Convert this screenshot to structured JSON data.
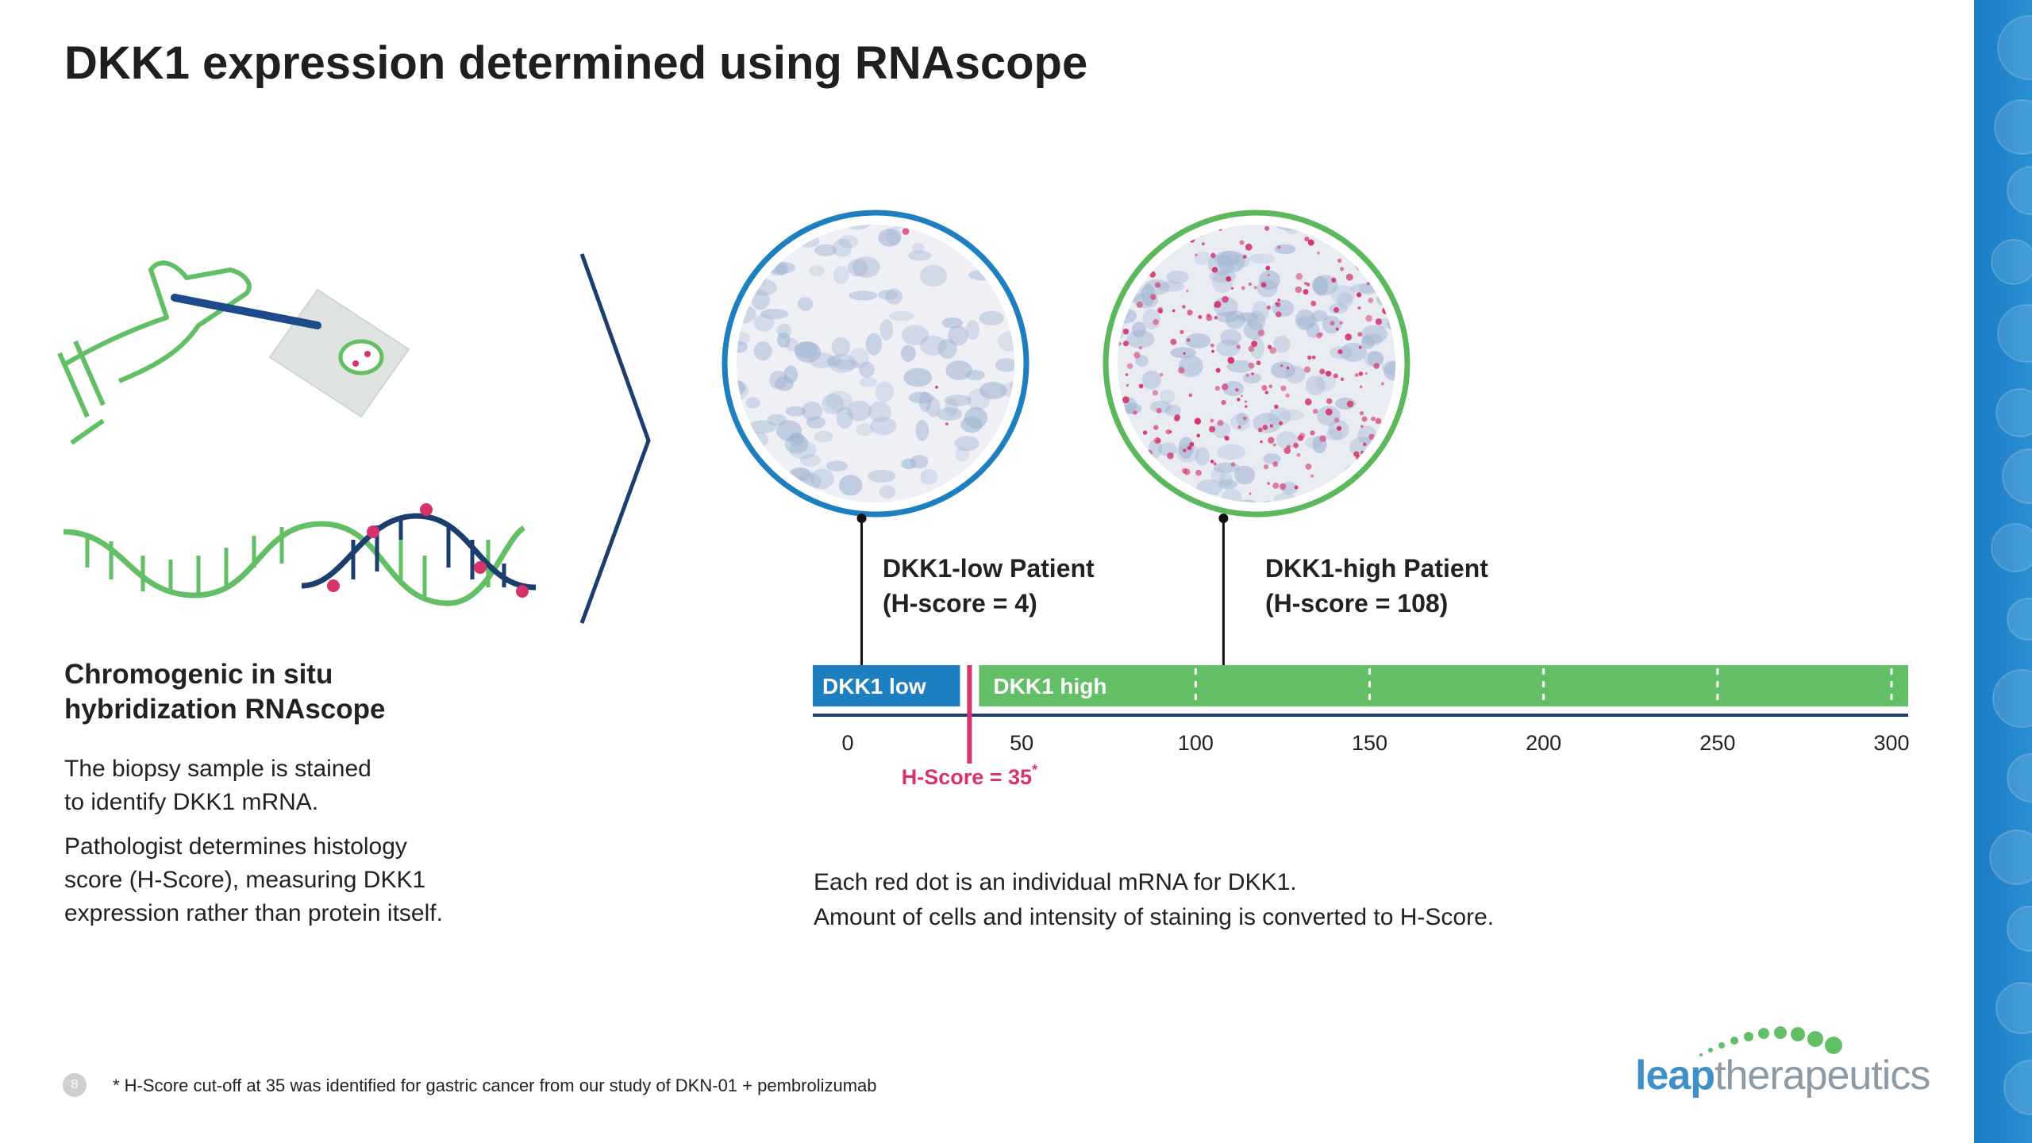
{
  "title": "DKK1 expression determined using RNAscope",
  "left_panel": {
    "heading_line1": "Chromogenic in situ",
    "heading_line2": "hybridization RNAscope",
    "para1_line1": "The biopsy sample is stained",
    "para1_line2": "to identify DKK1 mRNA.",
    "para2_line1": "Pathologist determines histology",
    "para2_line2": "score (H-Score), measuring DKK1",
    "para2_line3": "expression rather than protein itself."
  },
  "patients": {
    "low": {
      "line1": "DKK1-low Patient",
      "line2": "(H-score = 4)",
      "ring_color": "#1e7fc0",
      "score": 4
    },
    "high": {
      "line1": "DKK1-high Patient",
      "line2": "(H-score = 108)",
      "ring_color": "#5cb85c",
      "score": 108
    }
  },
  "scale": {
    "low_label": "DKK1 low",
    "high_label": "DKK1 high",
    "ticks": [
      "0",
      "50",
      "100",
      "150",
      "200",
      "250",
      "300"
    ],
    "cutoff_label": "H-Score = 35",
    "cutoff_marker": "*",
    "cutoff_value": 35,
    "min": 0,
    "max": 300,
    "low_color": "#1e7fc0",
    "high_color": "#62bf66",
    "cutoff_color": "#d6336c"
  },
  "caption": {
    "line1": "Each red dot is an individual mRNA for DKK1.",
    "line2": "Amount of cells and intensity of staining is converted to H-Score."
  },
  "footnote": "* H-Score cut-off at 35 was identified for gastric cancer from our study of DKN-01 + pembrolizumab",
  "page_number": "8",
  "logo": {
    "part1": "leap",
    "part2": "therapeutics"
  }
}
